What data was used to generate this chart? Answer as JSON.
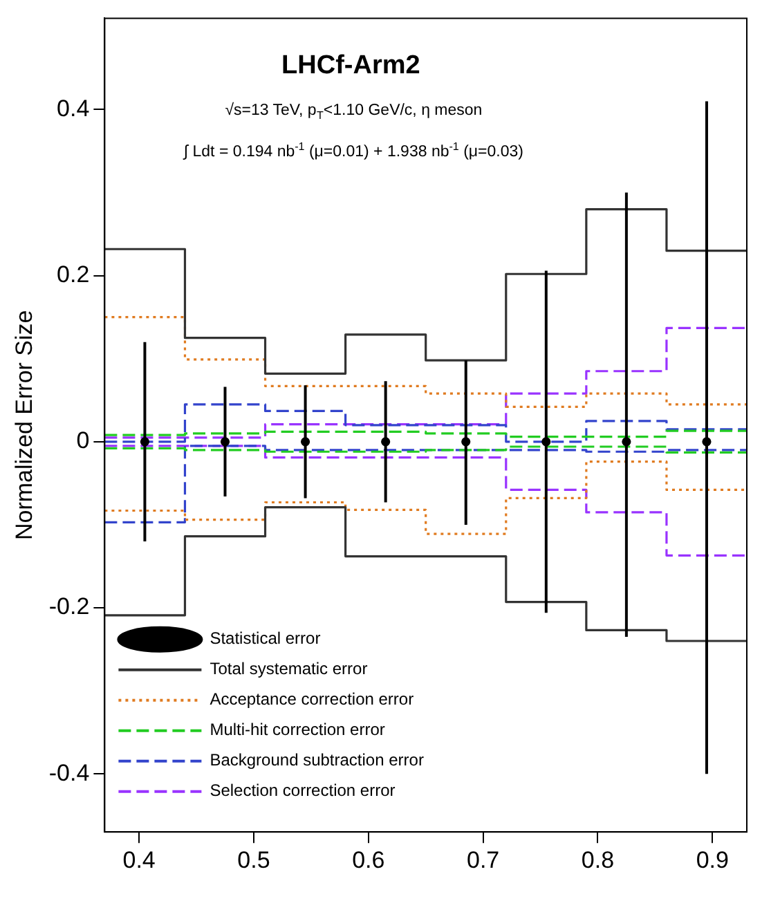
{
  "chart_data": {
    "type": "step",
    "title": "LHCf-Arm2",
    "ylabel": "Normalized Error Size",
    "annotations": [
      "√s=13 TeV, p$_{T}$<1.10 GeV/c, η meson",
      "∫ Ldt = 0.194 nb$^{-1}$ (μ=0.01) + 1.938 nb$^{-1}$ (μ=0.03)"
    ],
    "x": [
      0.37,
      0.44,
      0.51,
      0.58,
      0.65,
      0.72,
      0.79,
      0.86,
      0.93
    ],
    "xlim": [
      0.37,
      0.93
    ],
    "xticks": [
      0.4,
      0.5,
      0.6,
      0.7,
      0.8,
      0.9
    ],
    "ylim": [
      -0.47,
      0.51
    ],
    "yticks": [
      -0.4,
      -0.2,
      0,
      0.2,
      0.4
    ],
    "grid": false,
    "legend": "bottom left",
    "series": [
      {
        "name": "Statistical error",
        "type": "scatter",
        "marker": "circle",
        "color": "#000000",
        "x": [
          0.405,
          0.475,
          0.545,
          0.615,
          0.685,
          0.755,
          0.825,
          0.895
        ],
        "values": [
          0,
          0,
          0,
          0,
          0,
          0,
          0,
          0
        ],
        "errors": [
          0.12,
          0.066,
          0.068,
          0.073,
          [
            -0.1,
            0.098
          ],
          0.206,
          [
            -0.235,
            0.3
          ],
          [
            -0.4,
            0.41
          ]
        ]
      },
      {
        "name": "Total systematic error",
        "color": "#333333",
        "line_style": "solid",
        "values": [
          0.232,
          0.125,
          0.082,
          0.129,
          0.098,
          0.202,
          0.28,
          0.23,
          0.23
        ]
      },
      {
        "color": "#333333",
        "line_style": "solid",
        "values": [
          -0.209,
          -0.114,
          -0.079,
          -0.138,
          -0.138,
          -0.193,
          -0.227,
          -0.24,
          -0.24
        ]
      },
      {
        "name": "Acceptance correction error",
        "color": "#e07b20",
        "line_style": "dotted",
        "values": [
          0.15,
          0.099,
          0.067,
          0.067,
          0.058,
          0.042,
          0.058,
          0.045,
          0.045
        ]
      },
      {
        "color": "#e07b20",
        "line_style": "dotted",
        "values": [
          -0.083,
          -0.094,
          -0.073,
          -0.082,
          -0.111,
          -0.068,
          -0.024,
          -0.058,
          -0.058
        ]
      },
      {
        "name": "Multi-hit correction error",
        "color": "#22cc22",
        "line_style": "dashed",
        "values": [
          0.008,
          0.01,
          0.012,
          0.012,
          0.01,
          0.006,
          0.006,
          0.013,
          0.013
        ]
      },
      {
        "color": "#22cc22",
        "line_style": "dashed",
        "values": [
          -0.008,
          -0.01,
          -0.012,
          -0.012,
          -0.01,
          -0.006,
          -0.006,
          -0.013,
          -0.013
        ]
      },
      {
        "name": "Background subtraction error",
        "color": "#3344cc",
        "line_style": "dashed",
        "values": [
          0.0,
          0.045,
          0.037,
          0.02,
          0.02,
          0.0,
          0.025,
          0.015,
          0.015
        ]
      },
      {
        "color": "#3344cc",
        "line_style": "dashed",
        "values": [
          -0.097,
          -0.005,
          -0.01,
          -0.01,
          -0.01,
          -0.01,
          -0.012,
          -0.01,
          -0.01
        ]
      },
      {
        "name": "Selection correction error",
        "color": "#9933ff",
        "line_style": "dashed",
        "values": [
          0.005,
          0.005,
          0.021,
          0.021,
          0.021,
          0.058,
          0.085,
          0.137,
          0.137
        ]
      },
      {
        "color": "#9933ff",
        "line_style": "dashed",
        "values": [
          -0.005,
          -0.005,
          -0.019,
          -0.019,
          -0.019,
          -0.058,
          -0.085,
          -0.137,
          -0.137
        ]
      }
    ]
  }
}
